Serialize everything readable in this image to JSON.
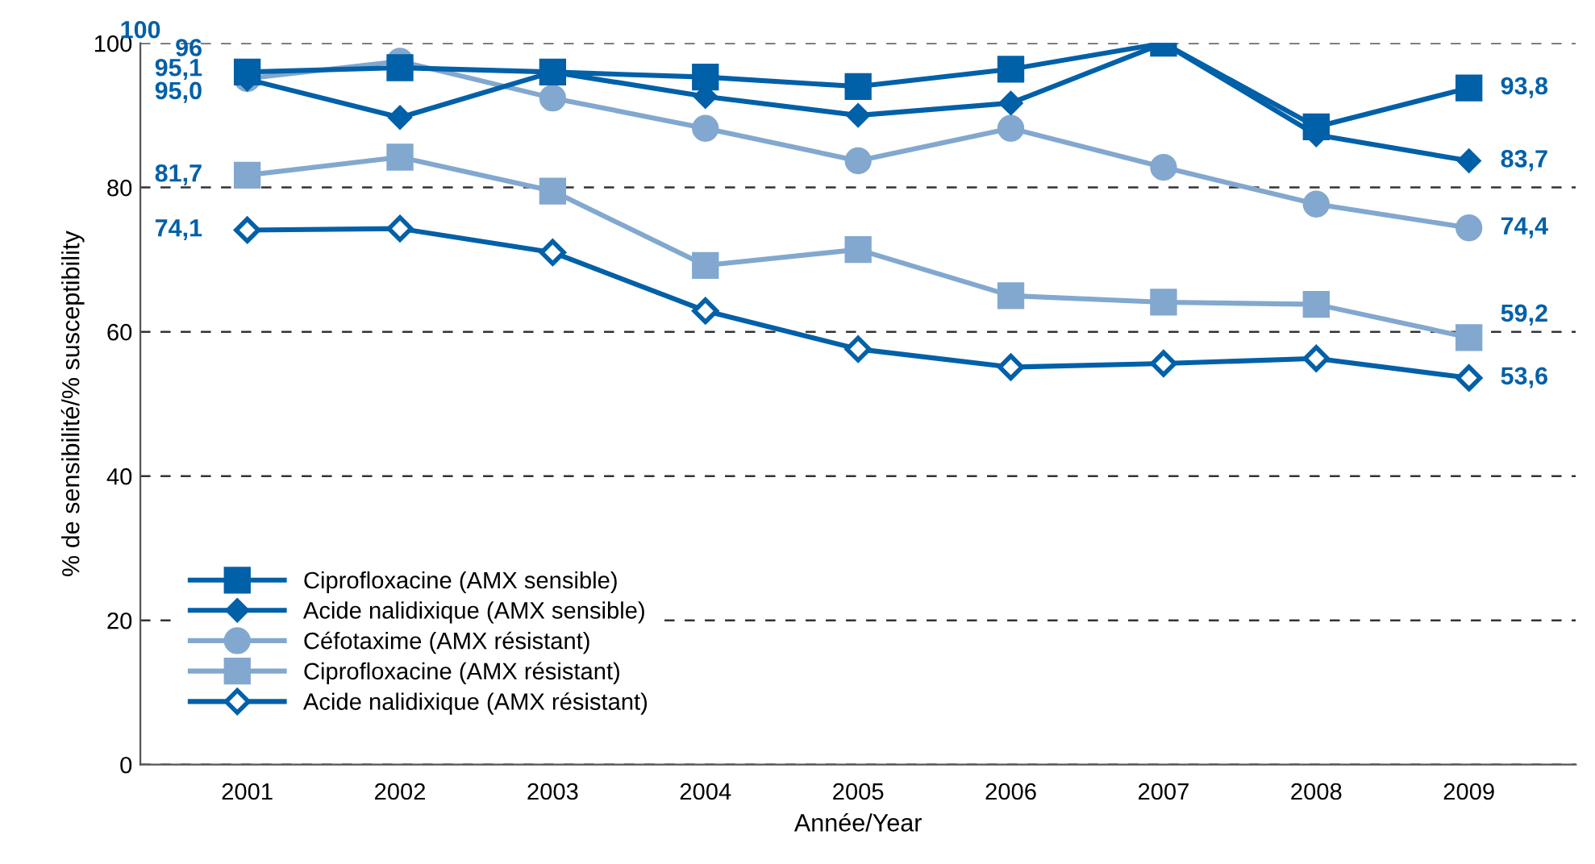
{
  "chart_data": {
    "type": "line",
    "xlabel": "Année/Year",
    "ylabel": "% de sensibilité/% susceptibility",
    "categories": [
      "2001",
      "2002",
      "2003",
      "2004",
      "2005",
      "2006",
      "2007",
      "2008",
      "2009"
    ],
    "ylim": [
      0,
      100
    ],
    "yticks": [
      0,
      20,
      40,
      60,
      80,
      100
    ],
    "grid": "y",
    "legend": "bottom left",
    "line_style": "solid",
    "series": [
      {
        "name": "Ciprofloxacine (AMX sensible)",
        "color": "#0060a8",
        "marker": "square",
        "values": [
          96,
          96.6,
          96,
          95.3,
          94.0,
          96.4,
          100,
          88.4,
          93.8
        ],
        "value_labels": [
          "96",
          null,
          null,
          null,
          null,
          null,
          null,
          null,
          "93,8"
        ]
      },
      {
        "name": "Acide nalidixique (AMX sensible)",
        "color": "#0060a8",
        "marker": "diamond",
        "values": [
          95.0,
          89.7,
          96,
          92.6,
          90.0,
          91.7,
          100,
          87.3,
          83.7
        ],
        "value_labels": [
          "95,0",
          null,
          null,
          null,
          null,
          null,
          null,
          null,
          "83,7"
        ]
      },
      {
        "name": "Céfotaxime (AMX résistant)",
        "color": "#82a8cf",
        "marker": "circle",
        "values": [
          95.1,
          97.5,
          92.4,
          88.2,
          83.7,
          88.2,
          82.8,
          77.7,
          74.4
        ],
        "value_labels": [
          "95,1",
          null,
          null,
          null,
          null,
          null,
          null,
          null,
          "74,4"
        ]
      },
      {
        "name": "Ciprofloxacine (AMX résistant)",
        "color": "#82a8cf",
        "marker": "square",
        "values": [
          81.7,
          84.2,
          79.5,
          69.2,
          71.4,
          65.0,
          64.1,
          63.8,
          59.2
        ],
        "value_labels": [
          "81,7",
          null,
          null,
          null,
          null,
          null,
          null,
          null,
          "59,2"
        ]
      },
      {
        "name": "Acide nalidixique (AMX résistant)",
        "color": "#0060a8",
        "marker": "diamond_open",
        "values": [
          74.1,
          74.3,
          71.0,
          62.9,
          57.6,
          55.1,
          55.6,
          56.3,
          53.6
        ],
        "value_labels": [
          "74,1",
          null,
          null,
          null,
          null,
          null,
          null,
          null,
          "53,6"
        ]
      }
    ],
    "annotations": [
      "100"
    ]
  }
}
